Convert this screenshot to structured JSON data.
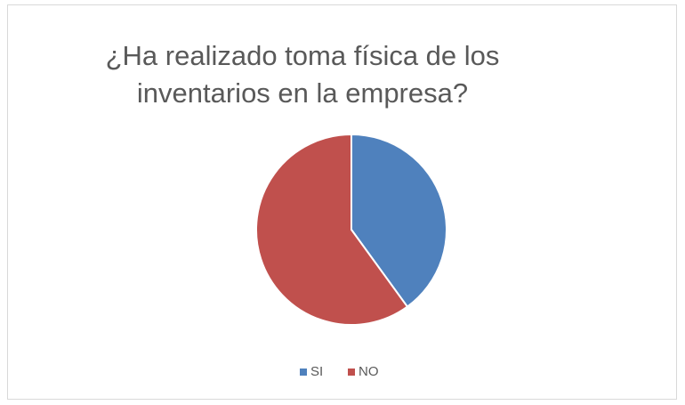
{
  "chart_data": {
    "type": "pie",
    "title": "¿Ha realizado toma física de los inventarios en la empresa?",
    "categories": [
      "SI",
      "NO"
    ],
    "values": [
      40,
      60
    ],
    "colors": [
      "#4f81bd",
      "#c0504d"
    ],
    "legend": "bottom"
  }
}
